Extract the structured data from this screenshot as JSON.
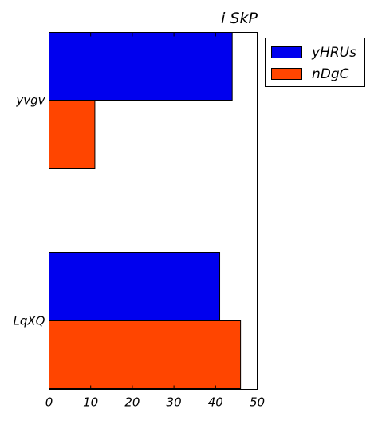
{
  "chart_data": {
    "type": "bar",
    "orientation": "horizontal",
    "title": "i SkP",
    "xlabel": "",
    "ylabel": "",
    "categories": [
      "yvgv",
      "LqXQ"
    ],
    "series": [
      {
        "name": "yHRUs",
        "color": "#0000ee",
        "values": [
          44,
          41
        ]
      },
      {
        "name": "nDgC",
        "color": "#ff4500",
        "values": [
          11,
          46
        ]
      }
    ],
    "xlim": [
      0,
      50
    ],
    "xticks": [
      "0",
      "10",
      "20",
      "30",
      "40",
      "50"
    ],
    "grid": false,
    "legend_position": "outside-right-top"
  }
}
